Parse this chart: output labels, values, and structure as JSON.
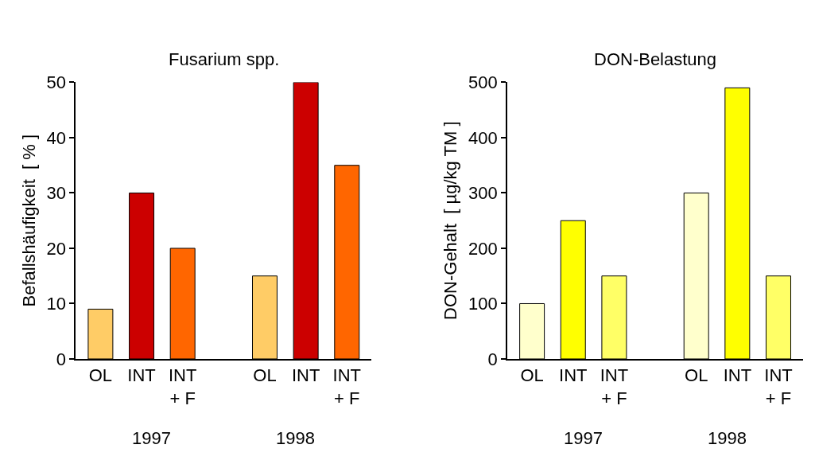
{
  "chart_data": [
    {
      "type": "bar",
      "title": "Fusarium spp.",
      "ylabel": "Befallshäufigkeit  [ % ]",
      "categories": [
        "OL",
        "INT",
        "INT\n+ F",
        null,
        "OL",
        "INT",
        "INT\n+ F"
      ],
      "values": [
        9,
        30,
        20,
        null,
        15,
        50,
        35
      ],
      "colors": [
        "#ffcc66",
        "#cc0000",
        "#ff6600",
        null,
        "#ffcc66",
        "#cc0000",
        "#ff6600"
      ],
      "ylim": [
        0,
        50
      ],
      "yticks": [
        0,
        10,
        20,
        30,
        40,
        50
      ],
      "annotations": [
        "1997",
        "1998"
      ]
    },
    {
      "type": "bar",
      "title": "DON-Belastung",
      "ylabel": "DON-Gehalt  [ µg/kg TM ]",
      "categories": [
        "OL",
        "INT",
        "INT\n+ F",
        null,
        "OL",
        "INT",
        "INT\n+ F"
      ],
      "values": [
        100,
        250,
        150,
        null,
        300,
        490,
        150
      ],
      "colors": [
        "#ffffcc",
        "#ffff00",
        "#ffff66",
        null,
        "#ffffcc",
        "#ffff00",
        "#ffff66"
      ],
      "ylim": [
        0,
        500
      ],
      "yticks": [
        0,
        100,
        200,
        300,
        400,
        500
      ],
      "annotations": [
        "1997",
        "1998"
      ]
    }
  ]
}
